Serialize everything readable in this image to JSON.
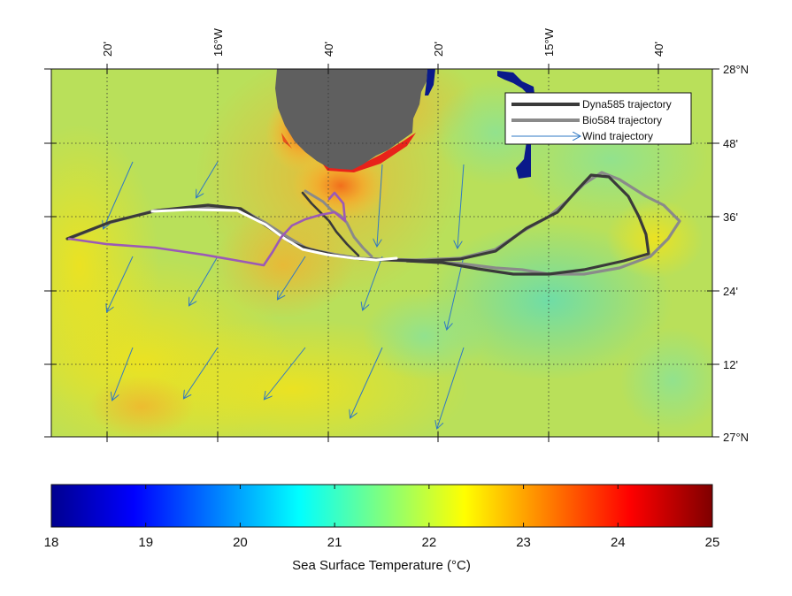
{
  "map": {
    "top_ticks": [
      {
        "label": "20'"
      },
      {
        "label": "16°W"
      },
      {
        "label": "40'"
      },
      {
        "label": "20'"
      },
      {
        "label": "15°W"
      },
      {
        "label": "40'"
      }
    ],
    "right_ticks": [
      {
        "label": "28°N"
      },
      {
        "label": "48'"
      },
      {
        "label": "36'"
      },
      {
        "label": "24'"
      },
      {
        "label": "12'"
      },
      {
        "label": "27°N"
      }
    ],
    "colors": {
      "land": "#5f5f5f",
      "dyna_track": "#3a3a3a",
      "bio_track": "#8a8a8a",
      "wind_arrow": "#2f78c4",
      "white_segment": "#ffffff",
      "purple_segment": "#9b59b6"
    }
  },
  "legend": {
    "items": [
      {
        "label": "Dyna585 trajectory",
        "kind": "thick-line",
        "color": "#3a3a3a"
      },
      {
        "label": "Bio584 trajectory",
        "kind": "thick-line",
        "color": "#8a8a8a"
      },
      {
        "label": "Wind trajectory",
        "kind": "arrow",
        "color": "#2f78c4"
      }
    ]
  },
  "colorbar": {
    "min": 18,
    "max": 25,
    "tick_labels": [
      "18",
      "19",
      "20",
      "21",
      "22",
      "23",
      "24",
      "25"
    ],
    "title": "Sea Surface Temperature (°C)"
  }
}
